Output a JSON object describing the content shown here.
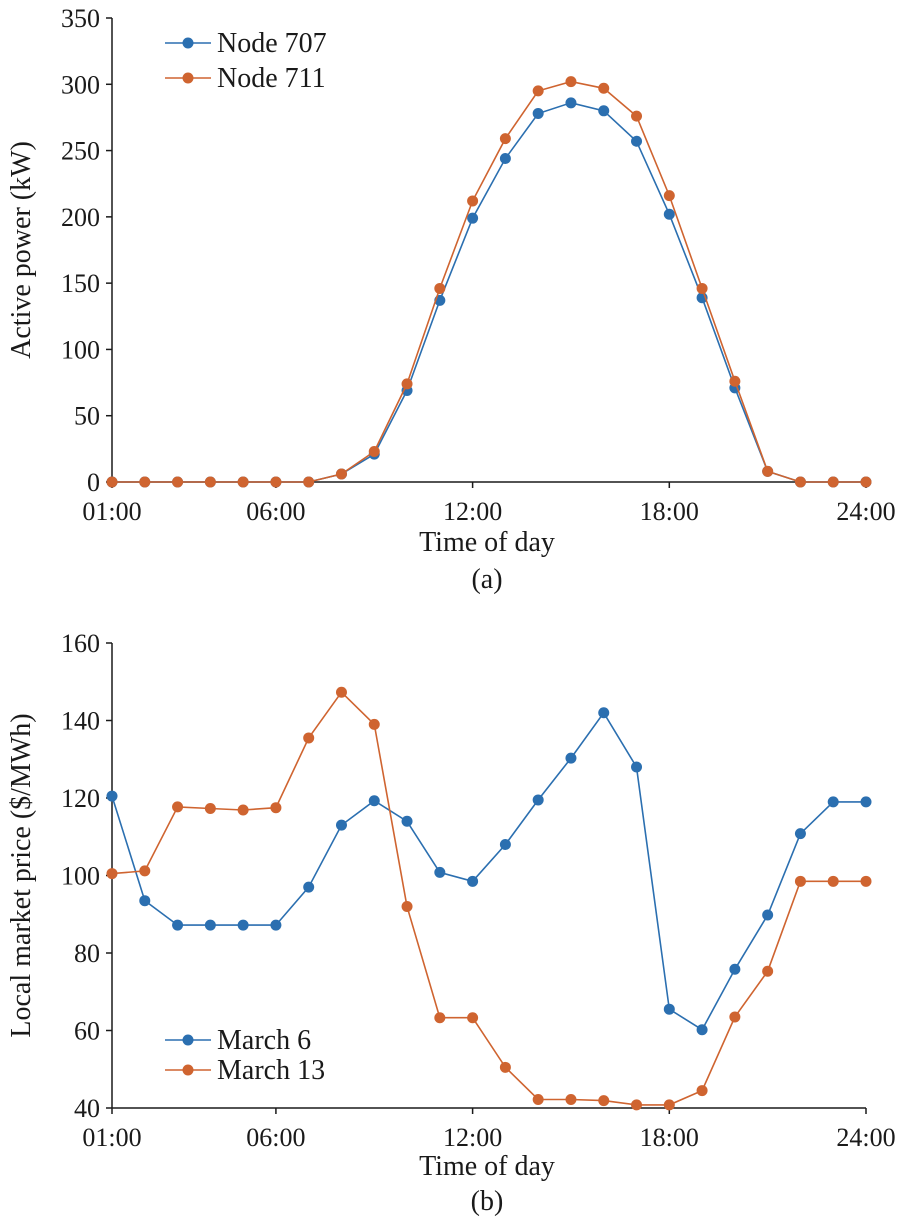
{
  "chart_data": [
    {
      "type": "line",
      "panel_label": "(a)",
      "xlabel": "Time of day",
      "ylabel": "Active power (kW)",
      "x": [
        1,
        2,
        3,
        4,
        5,
        6,
        7,
        8,
        9,
        10,
        11,
        12,
        13,
        14,
        15,
        16,
        17,
        18,
        19,
        20,
        21,
        22,
        23,
        24
      ],
      "xticks": [
        1,
        6,
        12,
        18,
        24
      ],
      "xtick_labels": [
        "01:00",
        "06:00",
        "12:00",
        "18:00",
        "24:00"
      ],
      "xlim": [
        1,
        24
      ],
      "ylim": [
        0,
        350
      ],
      "yticks": [
        0,
        50,
        100,
        150,
        200,
        250,
        300,
        350
      ],
      "legend_position": "top-left",
      "series": [
        {
          "name": "Node 707",
          "color": "#2b6fb0",
          "values": [
            0,
            0,
            0,
            0,
            0,
            0,
            0,
            6,
            21,
            69,
            137,
            199,
            244,
            278,
            286,
            280,
            257,
            202,
            139,
            71,
            8,
            0,
            0,
            0
          ]
        },
        {
          "name": "Node 711",
          "color": "#cf6430",
          "values": [
            0,
            0,
            0,
            0,
            0,
            0,
            0,
            6,
            23,
            74,
            146,
            212,
            259,
            295,
            302,
            297,
            276,
            216,
            146,
            76,
            8,
            0,
            0,
            0
          ]
        }
      ]
    },
    {
      "type": "line",
      "panel_label": "(b)",
      "xlabel": "Time of day",
      "ylabel": "Local market price ($/MWh)",
      "x": [
        1,
        2,
        3,
        4,
        5,
        6,
        7,
        8,
        9,
        10,
        11,
        12,
        13,
        14,
        15,
        16,
        17,
        18,
        19,
        20,
        21,
        22,
        23,
        24
      ],
      "xticks": [
        1,
        6,
        12,
        18,
        24
      ],
      "xtick_labels": [
        "01:00",
        "06:00",
        "12:00",
        "18:00",
        "24:00"
      ],
      "xlim": [
        1,
        24
      ],
      "ylim": [
        40,
        160
      ],
      "yticks": [
        40,
        60,
        80,
        100,
        120,
        140,
        160
      ],
      "legend_position": "bottom-left",
      "series": [
        {
          "name": "March 6",
          "color": "#2b6fb0",
          "values": [
            120.5,
            93.5,
            87.2,
            87.2,
            87.2,
            87.2,
            97,
            113,
            119.3,
            114,
            100.8,
            98.5,
            108,
            119.5,
            130.3,
            142,
            128,
            65.5,
            60.2,
            75.8,
            89.8,
            110.8,
            119,
            119
          ]
        },
        {
          "name": "March 13",
          "color": "#cf6430",
          "values": [
            100.5,
            101.2,
            117.7,
            117.3,
            116.9,
            117.5,
            135.5,
            147.3,
            139,
            92,
            63.3,
            63.3,
            50.5,
            42.2,
            42.2,
            41.9,
            40.8,
            40.8,
            44.5,
            63.5,
            75.3,
            98.5,
            98.5,
            98.5
          ]
        }
      ]
    }
  ]
}
